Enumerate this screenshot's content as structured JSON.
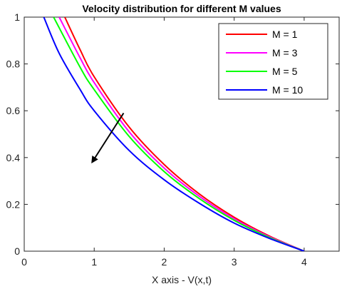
{
  "chart_data": {
    "type": "line",
    "title": "Velocity distribution for different M values",
    "xlabel": "X axis - V(x,t)",
    "ylabel": "",
    "xlim": [
      0,
      4.5
    ],
    "ylim": [
      0,
      1
    ],
    "xticks": [
      "0",
      "1",
      "2",
      "3",
      "4"
    ],
    "yticks": [
      "0",
      "0.2",
      "0.4",
      "0.6",
      "0.8",
      "1"
    ],
    "grid": false,
    "legend_position": "top-right",
    "series": [
      {
        "name": "M = 1",
        "color": "#ff0000",
        "points": [
          [
            0.58,
            1.0
          ],
          [
            0.8,
            0.86
          ],
          [
            1.0,
            0.745
          ],
          [
            1.5,
            0.53
          ],
          [
            2.0,
            0.37
          ],
          [
            2.5,
            0.245
          ],
          [
            3.0,
            0.145
          ],
          [
            3.5,
            0.065
          ],
          [
            4.0,
            0.0
          ]
        ]
      },
      {
        "name": "M = 3",
        "color": "#ff00ff",
        "points": [
          [
            0.5,
            1.0
          ],
          [
            0.8,
            0.825
          ],
          [
            1.0,
            0.72
          ],
          [
            1.5,
            0.51
          ],
          [
            2.0,
            0.355
          ],
          [
            2.5,
            0.235
          ],
          [
            3.0,
            0.138
          ],
          [
            3.5,
            0.062
          ],
          [
            4.0,
            0.0
          ]
        ]
      },
      {
        "name": "M = 5",
        "color": "#00ff00",
        "points": [
          [
            0.42,
            1.0
          ],
          [
            0.8,
            0.785
          ],
          [
            1.0,
            0.69
          ],
          [
            1.5,
            0.49
          ],
          [
            2.0,
            0.34
          ],
          [
            2.5,
            0.225
          ],
          [
            3.0,
            0.132
          ],
          [
            3.5,
            0.059
          ],
          [
            4.0,
            0.0
          ]
        ]
      },
      {
        "name": "M = 10",
        "color": "#0000ff",
        "points": [
          [
            0.28,
            1.0
          ],
          [
            0.5,
            0.845
          ],
          [
            0.8,
            0.69
          ],
          [
            1.0,
            0.6
          ],
          [
            1.5,
            0.43
          ],
          [
            2.0,
            0.305
          ],
          [
            2.5,
            0.205
          ],
          [
            3.0,
            0.12
          ],
          [
            3.5,
            0.055
          ],
          [
            4.0,
            0.0
          ]
        ]
      }
    ],
    "annotations": [
      {
        "type": "arrow",
        "from": [
          1.42,
          0.59
        ],
        "to": [
          0.97,
          0.38
        ],
        "color": "#000000"
      }
    ]
  }
}
